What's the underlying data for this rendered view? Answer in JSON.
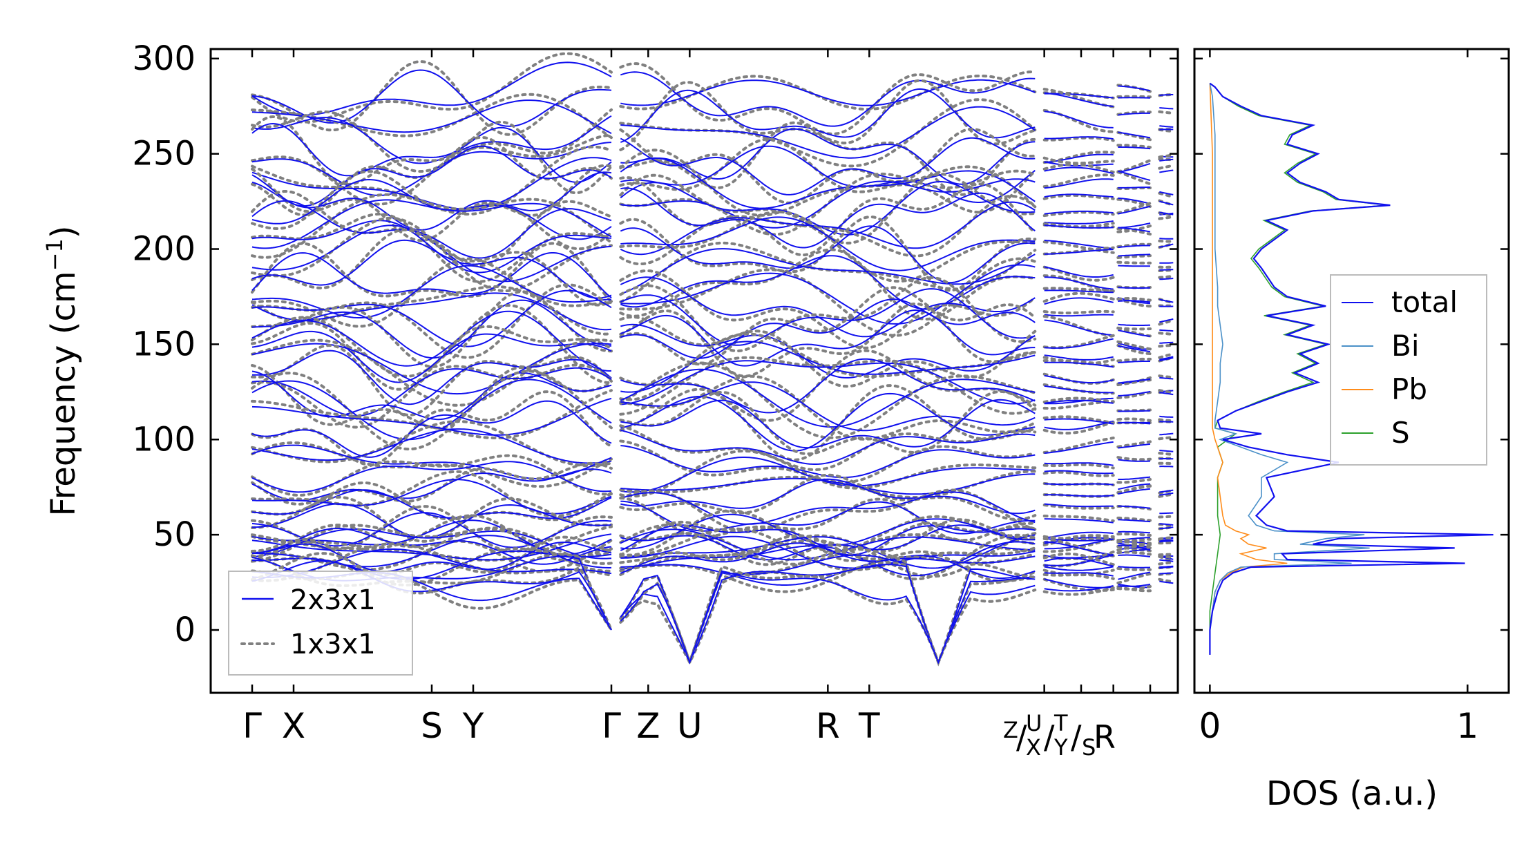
{
  "chart_data": [
    {
      "type": "line",
      "title": "",
      "xlabel": "",
      "ylabel": "Frequency (cm",
      "ylabel_sup": "−1",
      "ylabel_close": ")",
      "ylim": [
        -33,
        305
      ],
      "yticks": [
        0,
        50,
        100,
        150,
        200,
        250,
        300
      ],
      "path_labels": [
        {
          "label": "Γ",
          "pos": 0.0
        },
        {
          "label": "X",
          "pos": 0.45
        },
        {
          "label": "S",
          "pos": 1.95
        },
        {
          "label": "Y",
          "pos": 2.4
        },
        {
          "label": "Γ",
          "pos": 3.9
        },
        {
          "label": "Z",
          "pos": 4.3
        },
        {
          "label": "U",
          "pos": 4.75
        },
        {
          "label": "R",
          "pos": 6.25
        },
        {
          "label": "T",
          "pos": 6.7
        }
      ],
      "extra_ticks": [
        8.6,
        9.0,
        9.35,
        9.75
      ],
      "segment_label": {
        "z": "Z",
        "x": "X",
        "u": "U",
        "y": "Y",
        "t": "T",
        "s": "S",
        "r": "R",
        "sep": "/"
      },
      "xlim": [
        -0.45,
        10.05
      ],
      "legend": {
        "position": "lower-left",
        "entries": [
          {
            "label": "2x3x1",
            "color": "#1010ee",
            "style": "solid"
          },
          {
            "label": "1x3x1",
            "color": "#808080",
            "style": "dotted"
          }
        ]
      },
      "series": [
        {
          "name": "2x3x1",
          "color": "#1010ee"
        },
        {
          "name": "1x3x1",
          "color": "#808080"
        }
      ],
      "segments": [
        [
          0,
          3.9
        ],
        [
          4.0,
          8.5
        ],
        [
          8.6,
          9.35
        ],
        [
          9.4,
          9.75
        ],
        [
          9.85,
          10.0
        ]
      ],
      "mode_freqs": [
        282,
        278,
        268,
        259,
        250,
        244,
        238,
        232,
        226,
        221,
        216,
        210,
        203,
        197,
        190,
        183,
        176,
        170,
        164,
        158,
        152,
        146,
        140,
        134,
        128,
        122,
        116,
        110,
        106,
        96,
        88,
        82,
        76,
        70,
        64,
        58,
        52,
        49,
        46,
        44,
        42,
        40,
        38,
        36,
        33,
        30,
        27,
        25
      ],
      "acoustic_dips": [
        {
          "at": 3.9,
          "to": 0
        },
        {
          "at": 7.45,
          "to": -17
        },
        {
          "at": 4.75,
          "to": -17
        }
      ]
    },
    {
      "type": "line",
      "xlabel": "DOS (a.u.)",
      "ylabel": "",
      "xlim": [
        -0.06,
        1.16
      ],
      "ylim": [
        -33,
        305
      ],
      "xticks": [
        0,
        1
      ],
      "legend": {
        "position": "center-right",
        "entries": [
          {
            "label": "total",
            "color": "#1010ee"
          },
          {
            "label": "Bi",
            "color": "#4a90c8"
          },
          {
            "label": "Pb",
            "color": "#ff8c1a"
          },
          {
            "label": "S",
            "color": "#2ca02c"
          }
        ]
      },
      "series": [
        {
          "name": "total",
          "color": "#1010ee",
          "points": [
            [
              -13,
              0.0
            ],
            [
              0,
              0.0
            ],
            [
              10,
              0.01
            ],
            [
              20,
              0.03
            ],
            [
              26,
              0.05
            ],
            [
              30,
              0.09
            ],
            [
              33,
              0.16
            ],
            [
              35,
              0.99
            ],
            [
              37,
              0.3
            ],
            [
              40,
              0.28
            ],
            [
              43,
              0.95
            ],
            [
              45,
              0.4
            ],
            [
              48,
              0.5
            ],
            [
              50,
              1.1
            ],
            [
              52,
              0.3
            ],
            [
              55,
              0.22
            ],
            [
              60,
              0.18
            ],
            [
              70,
              0.25
            ],
            [
              80,
              0.22
            ],
            [
              88,
              0.5
            ],
            [
              92,
              0.3
            ],
            [
              96,
              0.15
            ],
            [
              100,
              0.05
            ],
            [
              103,
              0.2
            ],
            [
              106,
              0.04
            ],
            [
              110,
              0.03
            ],
            [
              115,
              0.1
            ],
            [
              120,
              0.2
            ],
            [
              125,
              0.3
            ],
            [
              130,
              0.42
            ],
            [
              135,
              0.33
            ],
            [
              140,
              0.42
            ],
            [
              145,
              0.35
            ],
            [
              150,
              0.46
            ],
            [
              155,
              0.3
            ],
            [
              160,
              0.4
            ],
            [
              165,
              0.22
            ],
            [
              170,
              0.45
            ],
            [
              175,
              0.3
            ],
            [
              180,
              0.25
            ],
            [
              190,
              0.2
            ],
            [
              195,
              0.17
            ],
            [
              200,
              0.2
            ],
            [
              205,
              0.25
            ],
            [
              210,
              0.3
            ],
            [
              215,
              0.22
            ],
            [
              220,
              0.4
            ],
            [
              223,
              0.7
            ],
            [
              226,
              0.5
            ],
            [
              230,
              0.45
            ],
            [
              235,
              0.35
            ],
            [
              240,
              0.3
            ],
            [
              245,
              0.35
            ],
            [
              250,
              0.42
            ],
            [
              255,
              0.3
            ],
            [
              260,
              0.32
            ],
            [
              265,
              0.4
            ],
            [
              270,
              0.2
            ],
            [
              275,
              0.12
            ],
            [
              280,
              0.05
            ],
            [
              285,
              0.02
            ],
            [
              287,
              0.0
            ]
          ]
        },
        {
          "name": "Bi",
          "color": "#4a90c8",
          "points": [
            [
              -13,
              0.0
            ],
            [
              0,
              0.0
            ],
            [
              10,
              0.01
            ],
            [
              20,
              0.02
            ],
            [
              26,
              0.04
            ],
            [
              30,
              0.07
            ],
            [
              33,
              0.12
            ],
            [
              35,
              0.55
            ],
            [
              37,
              0.25
            ],
            [
              40,
              0.25
            ],
            [
              43,
              0.62
            ],
            [
              45,
              0.35
            ],
            [
              48,
              0.45
            ],
            [
              50,
              0.6
            ],
            [
              52,
              0.25
            ],
            [
              55,
              0.18
            ],
            [
              60,
              0.15
            ],
            [
              70,
              0.2
            ],
            [
              80,
              0.2
            ],
            [
              88,
              0.3
            ],
            [
              92,
              0.2
            ],
            [
              96,
              0.12
            ],
            [
              100,
              0.04
            ],
            [
              103,
              0.1
            ],
            [
              106,
              0.02
            ],
            [
              110,
              0.02
            ],
            [
              120,
              0.03
            ],
            [
              130,
              0.04
            ],
            [
              140,
              0.04
            ],
            [
              150,
              0.05
            ],
            [
              160,
              0.04
            ],
            [
              170,
              0.03
            ],
            [
              180,
              0.03
            ],
            [
              200,
              0.02
            ],
            [
              220,
              0.02
            ],
            [
              240,
              0.02
            ],
            [
              260,
              0.02
            ],
            [
              280,
              0.01
            ],
            [
              287,
              0.0
            ]
          ]
        },
        {
          "name": "Pb",
          "color": "#ff8c1a",
          "points": [
            [
              -13,
              0.0
            ],
            [
              0,
              0.0
            ],
            [
              10,
              0.01
            ],
            [
              20,
              0.02
            ],
            [
              26,
              0.04
            ],
            [
              30,
              0.08
            ],
            [
              33,
              0.13
            ],
            [
              35,
              0.3
            ],
            [
              37,
              0.18
            ],
            [
              40,
              0.12
            ],
            [
              43,
              0.22
            ],
            [
              45,
              0.15
            ],
            [
              48,
              0.12
            ],
            [
              50,
              0.15
            ],
            [
              52,
              0.1
            ],
            [
              55,
              0.06
            ],
            [
              60,
              0.05
            ],
            [
              70,
              0.04
            ],
            [
              80,
              0.03
            ],
            [
              88,
              0.05
            ],
            [
              92,
              0.04
            ],
            [
              96,
              0.03
            ],
            [
              100,
              0.02
            ],
            [
              106,
              0.01
            ],
            [
              120,
              0.01
            ],
            [
              150,
              0.01
            ],
            [
              200,
              0.01
            ],
            [
              250,
              0.01
            ],
            [
              287,
              0.0
            ]
          ]
        },
        {
          "name": "S",
          "color": "#2ca02c",
          "points": [
            [
              -13,
              0.0
            ],
            [
              0,
              0.0
            ],
            [
              10,
              0.0
            ],
            [
              20,
              0.01
            ],
            [
              30,
              0.02
            ],
            [
              40,
              0.03
            ],
            [
              50,
              0.04
            ],
            [
              60,
              0.03
            ],
            [
              70,
              0.03
            ],
            [
              80,
              0.03
            ],
            [
              88,
              0.05
            ],
            [
              96,
              0.03
            ],
            [
              103,
              0.1
            ],
            [
              106,
              0.02
            ],
            [
              110,
              0.03
            ],
            [
              115,
              0.1
            ],
            [
              120,
              0.19
            ],
            [
              125,
              0.29
            ],
            [
              130,
              0.4
            ],
            [
              135,
              0.32
            ],
            [
              140,
              0.41
            ],
            [
              145,
              0.34
            ],
            [
              150,
              0.45
            ],
            [
              155,
              0.29
            ],
            [
              160,
              0.39
            ],
            [
              165,
              0.21
            ],
            [
              170,
              0.44
            ],
            [
              175,
              0.29
            ],
            [
              180,
              0.24
            ],
            [
              190,
              0.19
            ],
            [
              195,
              0.16
            ],
            [
              200,
              0.19
            ],
            [
              205,
              0.24
            ],
            [
              210,
              0.29
            ],
            [
              215,
              0.21
            ],
            [
              220,
              0.39
            ],
            [
              223,
              0.69
            ],
            [
              226,
              0.49
            ],
            [
              230,
              0.44
            ],
            [
              235,
              0.34
            ],
            [
              240,
              0.29
            ],
            [
              245,
              0.34
            ],
            [
              250,
              0.41
            ],
            [
              255,
              0.29
            ],
            [
              260,
              0.31
            ],
            [
              265,
              0.39
            ],
            [
              270,
              0.19
            ],
            [
              275,
              0.11
            ],
            [
              280,
              0.05
            ],
            [
              285,
              0.02
            ],
            [
              287,
              0.0
            ]
          ]
        }
      ]
    }
  ]
}
